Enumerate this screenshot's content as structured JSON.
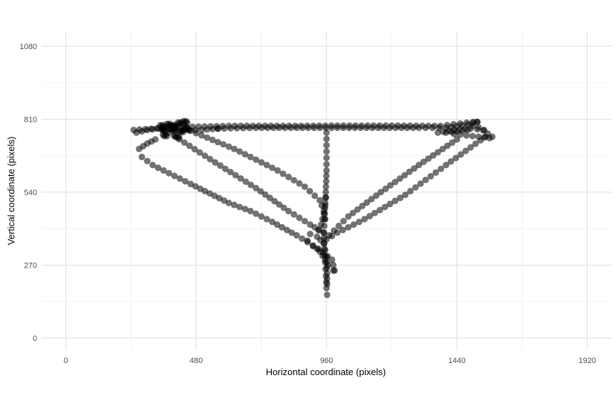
{
  "chart_data": {
    "type": "scatter",
    "xlabel": "Horizontal coordinate (pixels)",
    "ylabel": "Vertical coordinate (pixels)",
    "xlim": [
      -90,
      2010
    ],
    "ylim": [
      -45,
      1135
    ],
    "x_ticks": [
      0,
      480,
      960,
      1440,
      1920
    ],
    "y_ticks": [
      0,
      270,
      540,
      810,
      1080
    ],
    "x_tick_labels": [
      "0",
      "480",
      "960",
      "1440",
      "1920"
    ],
    "y_tick_labels": [
      "0",
      "270",
      "540",
      "810",
      "1080"
    ],
    "grid": true,
    "point_color": "#000000",
    "point_opacity": 0.55,
    "paths": [
      [
        [
          260,
          760
        ],
        [
          300,
          770
        ],
        [
          340,
          775
        ],
        [
          380,
          772
        ],
        [
          430,
          768
        ],
        [
          500,
          770
        ],
        [
          560,
          775
        ]
      ],
      [
        [
          560,
          775
        ],
        [
          700,
          778
        ],
        [
          850,
          778
        ],
        [
          1000,
          778
        ],
        [
          1150,
          778
        ],
        [
          1300,
          778
        ],
        [
          1400,
          778
        ],
        [
          1480,
          790
        ],
        [
          1515,
          800
        ]
      ],
      [
        [
          250,
          770
        ],
        [
          400,
          780
        ],
        [
          600,
          785
        ],
        [
          800,
          785
        ],
        [
          1000,
          786
        ],
        [
          1200,
          786
        ],
        [
          1380,
          785
        ],
        [
          1500,
          800
        ]
      ],
      [
        [
          1515,
          800
        ],
        [
          1480,
          770
        ],
        [
          1440,
          765
        ],
        [
          1400,
          760
        ],
        [
          1370,
          760
        ],
        [
          1430,
          770
        ],
        [
          1490,
          775
        ],
        [
          1540,
          770
        ]
      ],
      [
        [
          1520,
          780
        ],
        [
          1570,
          745
        ]
      ],
      [
        [
          1430,
          755
        ],
        [
          1520,
          745
        ],
        [
          1560,
          740
        ]
      ],
      [
        [
          1545,
          745
        ],
        [
          1400,
          640
        ],
        [
          1250,
          530
        ],
        [
          1100,
          440
        ],
        [
          1000,
          390
        ],
        [
          960,
          365
        ]
      ],
      [
        [
          1440,
          735
        ],
        [
          1300,
          640
        ],
        [
          1160,
          540
        ],
        [
          1040,
          450
        ],
        [
          970,
          380
        ]
      ],
      [
        [
          330,
          735
        ],
        [
          300,
          720
        ],
        [
          270,
          700
        ],
        [
          280,
          670
        ],
        [
          320,
          640
        ],
        [
          380,
          610
        ],
        [
          460,
          570
        ],
        [
          530,
          535
        ],
        [
          600,
          500
        ],
        [
          680,
          470
        ],
        [
          760,
          430
        ],
        [
          850,
          380
        ],
        [
          930,
          330
        ],
        [
          980,
          290
        ],
        [
          990,
          250
        ]
      ],
      [
        [
          380,
          760
        ],
        [
          550,
          650
        ],
        [
          700,
          555
        ],
        [
          820,
          470
        ],
        [
          900,
          420
        ],
        [
          950,
          390
        ]
      ],
      [
        [
          440,
          775
        ],
        [
          620,
          700
        ],
        [
          780,
          620
        ],
        [
          880,
          560
        ],
        [
          935,
          510
        ],
        [
          950,
          470
        ],
        [
          955,
          440
        ]
      ],
      [
        [
          960,
          760
        ],
        [
          960,
          690
        ],
        [
          960,
          620
        ],
        [
          958,
          560
        ],
        [
          955,
          500
        ],
        [
          953,
          440
        ],
        [
          950,
          390
        ],
        [
          952,
          330
        ],
        [
          955,
          280
        ],
        [
          958,
          230
        ],
        [
          960,
          185
        ],
        [
          962,
          160
        ]
      ],
      [
        [
          890,
          360
        ],
        [
          910,
          340
        ],
        [
          925,
          330
        ],
        [
          935,
          320
        ],
        [
          945,
          305
        ],
        [
          955,
          290
        ],
        [
          965,
          270
        ],
        [
          985,
          250
        ]
      ],
      [
        [
          930,
          400
        ],
        [
          940,
          420
        ],
        [
          945,
          440
        ],
        [
          950,
          460
        ],
        [
          955,
          490
        ],
        [
          958,
          520
        ]
      ],
      [
        [
          900,
          385
        ],
        [
          925,
          375
        ],
        [
          950,
          350
        ],
        [
          960,
          300
        ],
        [
          962,
          240
        ],
        [
          962,
          200
        ]
      ]
    ],
    "clusters": [
      [
        355,
        785
      ],
      [
        380,
        790
      ],
      [
        400,
        785
      ],
      [
        420,
        795
      ],
      [
        440,
        800
      ],
      [
        360,
        770
      ],
      [
        395,
        770
      ],
      [
        425,
        765
      ],
      [
        445,
        775
      ],
      [
        365,
        750
      ],
      [
        410,
        745
      ]
    ]
  }
}
